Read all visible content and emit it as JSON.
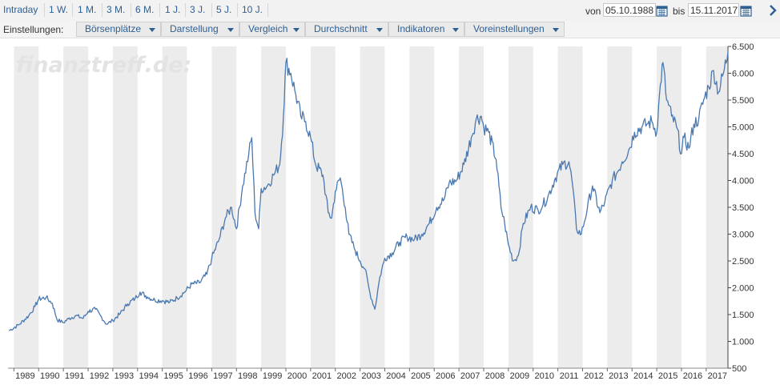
{
  "toolbar": {
    "ranges": [
      "Intraday",
      "1 W.",
      "1 M.",
      "3 M.",
      "6 M.",
      "1 J.",
      "3 J.",
      "5 J.",
      "10 J."
    ],
    "from_label": "von",
    "from_date": "05.10.1988",
    "to_label": "bis",
    "to_date": "15.11.2017",
    "next_icon": "chevron-right-icon"
  },
  "settings": {
    "label": "Einstellungen:",
    "menus": [
      "Börsenplätze",
      "Darstellung",
      "Vergleich",
      "Durchschnitt",
      "Indikatoren",
      "Voreinstellungen"
    ]
  },
  "colors": {
    "line": "#4a78b0",
    "band": "#ececec",
    "link": "#2e5f93"
  },
  "watermark": "finanztreff.de:",
  "chart_data": {
    "type": "line",
    "x_ticks": [
      "1989",
      "1990",
      "1991",
      "1992",
      "1993",
      "1994",
      "1995",
      "1996",
      "1997",
      "1998",
      "1999",
      "2000",
      "2001",
      "2002",
      "2003",
      "2004",
      "2005",
      "2006",
      "2007",
      "2008",
      "2009",
      "2010",
      "2011",
      "2012",
      "2013",
      "2014",
      "2015",
      "2016",
      "2017"
    ],
    "y_ticks": [
      "6.500",
      "6.000",
      "5.500",
      "5.000",
      "4.500",
      "4.000",
      "3.500",
      "3.000",
      "2.500",
      "2.000",
      "1.500",
      "1.000",
      "500"
    ],
    "ylim": [
      500,
      6500
    ],
    "xlim": [
      1988.76,
      2017.88
    ],
    "grid": "alternating vertical bands per year",
    "series": [
      {
        "x": [
          1988.8,
          1989.2,
          1989.6,
          1989.85,
          1990.0,
          1990.3,
          1990.55,
          1990.75,
          1991.0,
          1991.2,
          1991.5,
          1991.8,
          1992.0,
          1992.3,
          1992.5,
          1992.75,
          1993.0,
          1993.3,
          1993.6,
          1993.9,
          1994.1,
          1994.4,
          1994.7,
          1995.0,
          1995.3,
          1995.6,
          1995.9,
          1996.2,
          1996.5,
          1996.8,
          1997.0,
          1997.3,
          1997.55,
          1997.8,
          1998.0,
          1998.25,
          1998.5,
          1998.62,
          1998.75,
          1998.9,
          1999.0,
          1999.25,
          1999.5,
          1999.75,
          1999.9,
          2000.0,
          2000.2,
          2000.4,
          2000.6,
          2000.8,
          2001.0,
          2001.2,
          2001.5,
          2001.71,
          2001.85,
          2002.0,
          2002.2,
          2002.4,
          2002.55,
          2002.8,
          2003.0,
          2003.2,
          2003.4,
          2003.6,
          2003.8,
          2004.0,
          2004.3,
          2004.6,
          2004.9,
          2005.2,
          2005.5,
          2005.8,
          2006.1,
          2006.4,
          2006.6,
          2006.9,
          2007.2,
          2007.5,
          2007.7,
          2007.9,
          2008.0,
          2008.2,
          2008.5,
          2008.7,
          2008.85,
          2009.0,
          2009.2,
          2009.4,
          2009.6,
          2009.9,
          2010.2,
          2010.4,
          2010.6,
          2010.9,
          2011.2,
          2011.45,
          2011.6,
          2011.75,
          2011.95,
          2012.2,
          2012.4,
          2012.7,
          2012.9,
          2013.2,
          2013.4,
          2013.6,
          2013.9,
          2014.1,
          2014.4,
          2014.6,
          2014.8,
          2015.0,
          2015.15,
          2015.25,
          2015.4,
          2015.6,
          2015.8,
          2016.0,
          2016.1,
          2016.3,
          2016.5,
          2016.7,
          2016.9,
          2017.1,
          2017.3,
          2017.5,
          2017.7,
          2017.88
        ],
        "y": [
          1200,
          1310,
          1480,
          1650,
          1790,
          1820,
          1710,
          1400,
          1350,
          1420,
          1480,
          1430,
          1560,
          1600,
          1480,
          1320,
          1390,
          1520,
          1700,
          1800,
          1920,
          1830,
          1770,
          1760,
          1730,
          1810,
          1920,
          2070,
          2090,
          2250,
          2550,
          2900,
          3300,
          3500,
          3100,
          3900,
          4500,
          4800,
          3400,
          3100,
          3850,
          3900,
          4100,
          4300,
          5200,
          6200,
          6000,
          5600,
          5200,
          5100,
          4800,
          4300,
          4100,
          3400,
          3300,
          3800,
          4050,
          3500,
          3000,
          2700,
          2500,
          2350,
          1900,
          1600,
          2200,
          2550,
          2650,
          2850,
          2950,
          2900,
          3000,
          3200,
          3500,
          3650,
          3950,
          4000,
          4300,
          4800,
          5150,
          5200,
          5000,
          4900,
          4400,
          3500,
          3200,
          2800,
          2500,
          2600,
          3200,
          3500,
          3450,
          3550,
          3700,
          4050,
          4300,
          4350,
          3900,
          3100,
          3000,
          3500,
          3900,
          3400,
          3600,
          4000,
          4150,
          4350,
          4600,
          4900,
          5000,
          5050,
          5100,
          4900,
          5800,
          6200,
          5500,
          5200,
          5000,
          4500,
          4800,
          4600,
          5050,
          5150,
          5500,
          5750,
          6050,
          5650,
          6000,
          6400
        ]
      }
    ]
  }
}
